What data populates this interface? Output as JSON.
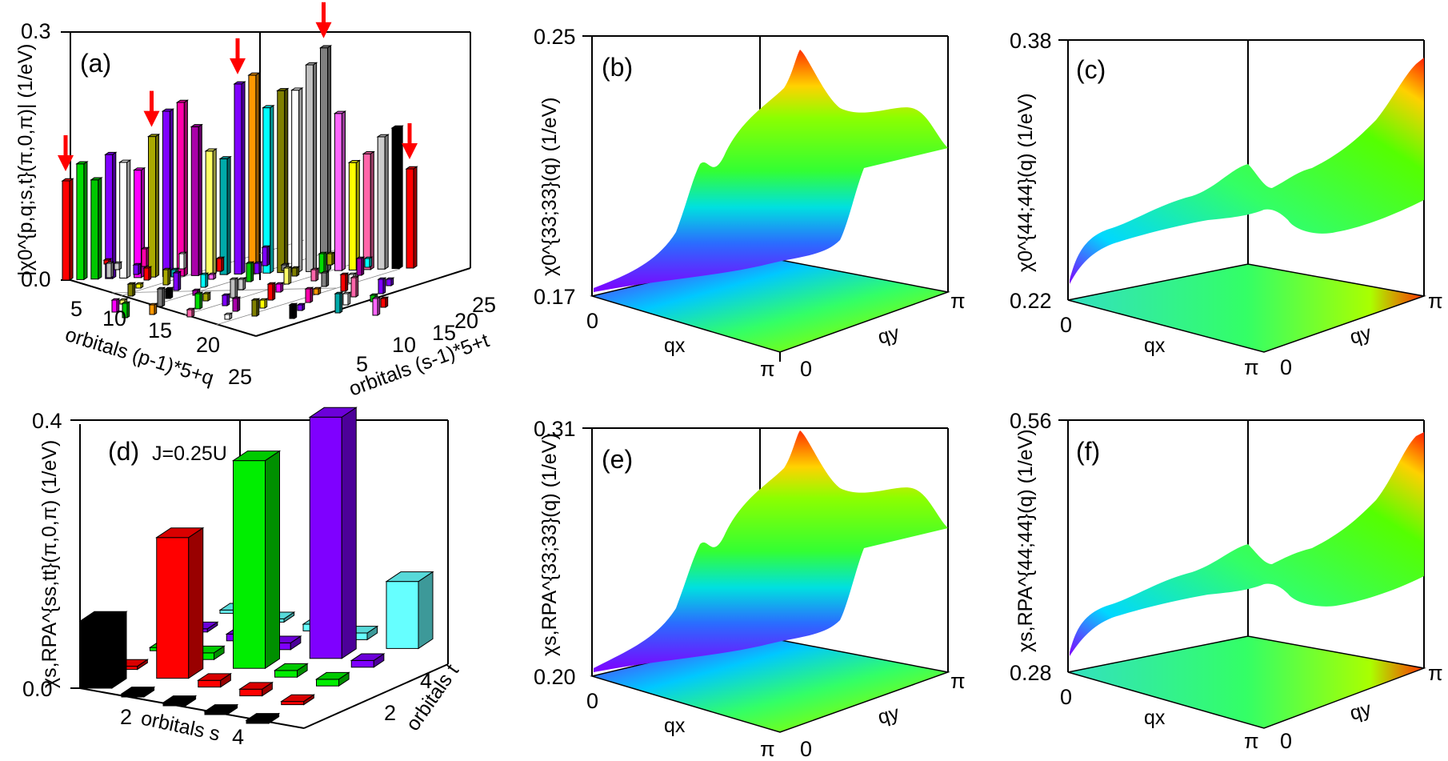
{
  "chart_data": [
    {
      "panel": "(a)",
      "type": "bar",
      "zlabel": "|χ0^{p,q;s,t}(π,0,π)| (1/eV)",
      "zlim": [
        0.0,
        0.3
      ],
      "z_ticks": [
        "0.0",
        "0.3"
      ],
      "xlabel": "orbitals (p-1)*5+q",
      "x_ticks": [
        "5",
        "10",
        "15",
        "20",
        "25"
      ],
      "ylabel": "orbitals (s-1)*5+t",
      "y_ticks": [
        "5",
        "10",
        "15",
        "20",
        "25"
      ],
      "highlighted_bars": [
        {
          "index": 1,
          "value": 0.12
        },
        {
          "index": 7,
          "value": 0.17
        },
        {
          "index": 13,
          "value": 0.23
        },
        {
          "index": 19,
          "value": 0.27
        },
        {
          "index": 25,
          "value": 0.12
        }
      ],
      "large_bars": [
        0.12,
        0.14,
        0.12,
        0.15,
        0.14,
        0.13,
        0.17,
        0.2,
        0.21,
        0.18,
        0.15,
        0.14,
        0.23,
        0.24,
        0.2,
        0.22,
        0.22,
        0.25,
        0.27,
        0.19,
        0.13,
        0.14,
        0.16,
        0.17,
        0.12
      ]
    },
    {
      "panel": "(b)",
      "type": "surface",
      "zlabel": "χ0^{33;33}(q) (1/eV)",
      "zlim": [
        0.17,
        0.25
      ],
      "z_ticks": [
        "0.17",
        "0.25"
      ],
      "xlabel": "qx",
      "ylabel": "qy",
      "x_ticks": [
        "0",
        "π"
      ],
      "y_ticks": [
        "0",
        "π"
      ]
    },
    {
      "panel": "(c)",
      "type": "surface",
      "zlabel": "χ0^{44;44}(q) (1/eV)",
      "zlim": [
        0.22,
        0.38
      ],
      "z_ticks": [
        "0.22",
        "0.38"
      ],
      "xlabel": "qx",
      "ylabel": "qy",
      "x_ticks": [
        "0",
        "π"
      ],
      "y_ticks": [
        "0",
        "π"
      ]
    },
    {
      "panel": "(d)",
      "type": "bar",
      "annotation": "J=0.25U",
      "zlabel": "χs,RPA^{ss,tt}(π,0,π) (1/eV)",
      "zlim": [
        0.0,
        0.4
      ],
      "z_ticks": [
        "0.0",
        "0.4"
      ],
      "xlabel": "orbitals s",
      "x_ticks": [
        "2",
        "4"
      ],
      "ylabel": "orbitals t",
      "y_ticks": [
        "2",
        "4"
      ],
      "orbitals": [
        1,
        2,
        3,
        4,
        5
      ],
      "orbital_colors": [
        "#000000",
        "#ff0000",
        "#00ee00",
        "#7f00ff",
        "#66ffff"
      ],
      "values": [
        [
          0.1,
          0.0,
          0.0,
          0.0,
          0.0
        ],
        [
          0.0,
          0.21,
          0.01,
          0.01,
          0.0
        ],
        [
          0.0,
          0.01,
          0.31,
          0.01,
          0.01
        ],
        [
          0.0,
          0.01,
          0.01,
          0.36,
          0.01
        ],
        [
          0.0,
          0.0,
          0.01,
          0.01,
          0.1
        ]
      ]
    },
    {
      "panel": "(e)",
      "type": "surface",
      "zlabel": "χs,RPA^{33;33}(q) (1/eV)",
      "zlim": [
        0.2,
        0.31
      ],
      "z_ticks": [
        "0.20",
        "0.31"
      ],
      "xlabel": "qx",
      "ylabel": "qy",
      "x_ticks": [
        "0",
        "π"
      ],
      "y_ticks": [
        "0",
        "π"
      ]
    },
    {
      "panel": "(f)",
      "type": "surface",
      "zlabel": "χs,RPA^{44;44}(q) (1/eV)",
      "zlim": [
        0.28,
        0.56
      ],
      "z_ticks": [
        "0.28",
        "0.56"
      ],
      "xlabel": "qx",
      "ylabel": "qy",
      "x_ticks": [
        "0",
        "π"
      ],
      "y_ticks": [
        "0",
        "π"
      ]
    }
  ],
  "colors": {
    "arrow": "#ff0000",
    "surface_low": "#7f00ff",
    "surface_high": "#ff4000"
  }
}
